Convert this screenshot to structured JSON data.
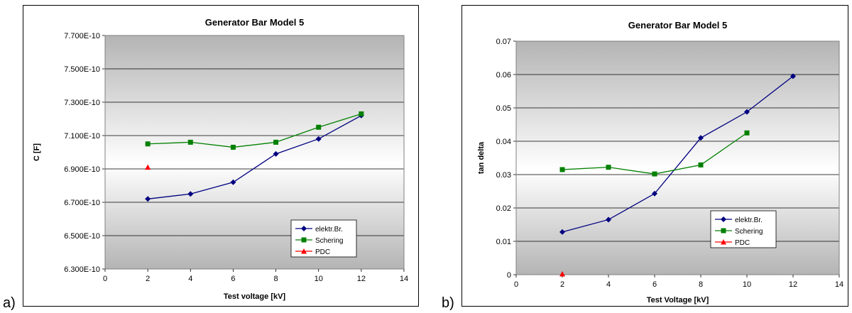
{
  "panels": [
    {
      "letter": "a)"
    },
    {
      "letter": "b)"
    }
  ],
  "chart_data": [
    {
      "type": "line",
      "title": "Generator Bar Model 5",
      "xlabel": "Test voltage [kV]",
      "ylabel": "C [F]",
      "xlim": [
        0,
        14
      ],
      "ylim": [
        6.3e-10,
        7.7e-10
      ],
      "x_ticks": [
        0,
        2,
        4,
        6,
        8,
        10,
        12,
        14
      ],
      "y_ticks": [
        6.3e-10,
        6.5e-10,
        6.7e-10,
        6.9e-10,
        7.1e-10,
        7.3e-10,
        7.5e-10,
        7.7e-10
      ],
      "y_tick_labels": [
        "6.300E-10",
        "6.500E-10",
        "6.700E-10",
        "6.900E-10",
        "7.100E-10",
        "7.300E-10",
        "7.500E-10",
        "7.700E-10"
      ],
      "grid": true,
      "legend_position": "bottom-right",
      "series": [
        {
          "name": "elektr.Br.",
          "color": "#000080",
          "marker": "diamond",
          "x": [
            2,
            4,
            6,
            8,
            10,
            12
          ],
          "y": [
            6.72e-10,
            6.75e-10,
            6.82e-10,
            6.99e-10,
            7.08e-10,
            7.22e-10
          ]
        },
        {
          "name": "Schering",
          "color": "#008000",
          "marker": "square",
          "x": [
            2,
            4,
            6,
            8,
            10,
            12
          ],
          "y": [
            7.05e-10,
            7.06e-10,
            7.03e-10,
            7.06e-10,
            7.15e-10,
            7.23e-10
          ]
        },
        {
          "name": "PDC",
          "color": "#ff0000",
          "marker": "triangle",
          "x": [
            2
          ],
          "y": [
            6.91e-10
          ]
        }
      ]
    },
    {
      "type": "line",
      "title": "Generator Bar Model 5",
      "xlabel": "Test Voltage [kV]",
      "ylabel": "tan delta",
      "xlim": [
        0,
        14
      ],
      "ylim": [
        0,
        0.07
      ],
      "x_ticks": [
        0,
        2,
        4,
        6,
        8,
        10,
        12,
        14
      ],
      "y_ticks": [
        0,
        0.01,
        0.02,
        0.03,
        0.04,
        0.05,
        0.06,
        0.07
      ],
      "y_tick_labels": [
        "0",
        "0.01",
        "0.02",
        "0.03",
        "0.04",
        "0.05",
        "0.06",
        "0.07"
      ],
      "grid": true,
      "legend_position": "bottom-right",
      "series": [
        {
          "name": "elektr.Br.",
          "color": "#000080",
          "marker": "diamond",
          "x": [
            2,
            4,
            6,
            8,
            10,
            12
          ],
          "y": [
            0.0128,
            0.0165,
            0.0243,
            0.041,
            0.0488,
            0.0595
          ]
        },
        {
          "name": "Schering",
          "color": "#008000",
          "marker": "square",
          "x": [
            2,
            4,
            6,
            8,
            10
          ],
          "y": [
            0.0315,
            0.0322,
            0.0302,
            0.0329,
            0.0425
          ]
        },
        {
          "name": "PDC",
          "color": "#ff0000",
          "marker": "triangle",
          "x": [
            2
          ],
          "y": [
            0.0002
          ]
        }
      ]
    }
  ]
}
